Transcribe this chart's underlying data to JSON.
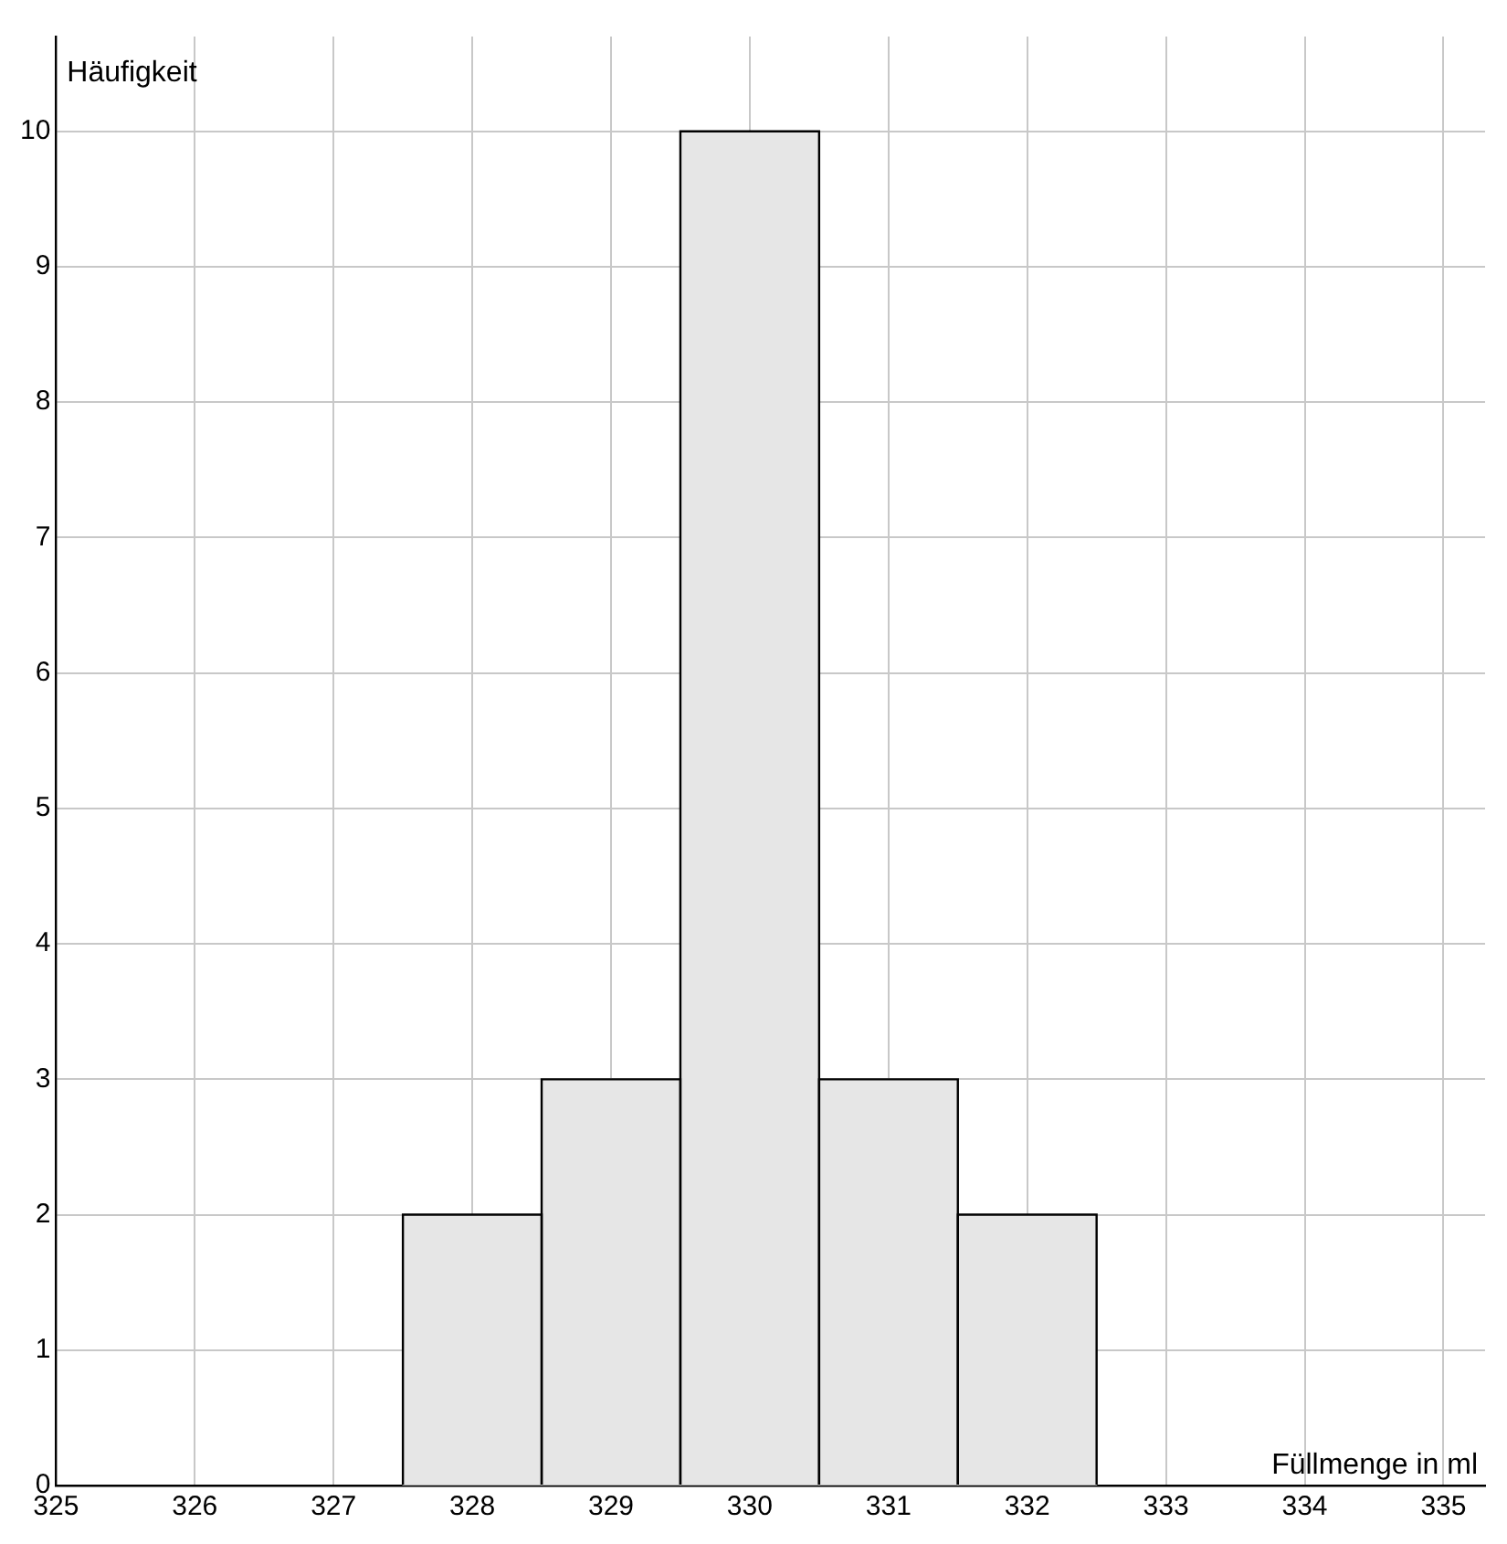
{
  "chart_data": {
    "type": "histogram",
    "xlabel": "Füllmenge in ml",
    "ylabel": "Häufigkeit",
    "bins": [
      327.5,
      328.5,
      329.5,
      330.5,
      331.5,
      332.5
    ],
    "values": [
      2,
      3,
      10,
      3,
      2
    ],
    "color": "#e6e6e6",
    "xlim": [
      325,
      335.3
    ],
    "xticks": [
      325,
      326,
      327,
      328,
      329,
      330,
      331,
      332,
      333,
      334,
      335
    ],
    "ylim": [
      0,
      10.7
    ],
    "yticks": [
      0,
      1,
      2,
      3,
      4,
      5,
      6,
      7,
      8,
      9,
      10
    ],
    "grid": true
  }
}
